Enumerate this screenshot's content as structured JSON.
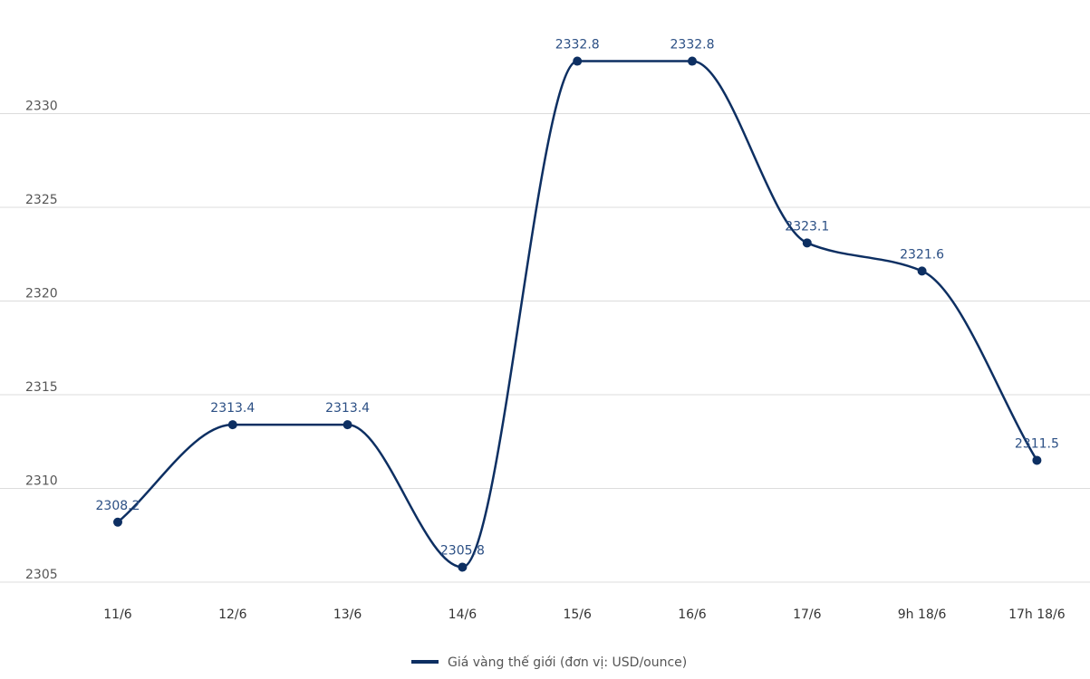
{
  "chart_data": {
    "type": "line",
    "categories": [
      "11/6",
      "12/6",
      "13/6",
      "14/6",
      "15/6",
      "16/6",
      "17/6",
      "9h 18/6",
      "17h 18/6"
    ],
    "series": [
      {
        "name": "Giá vàng thế giới (đơn vị: USD/ounce)",
        "values": [
          2308.2,
          2313.4,
          2313.4,
          2305.8,
          2332.8,
          2332.8,
          2323.1,
          2321.6,
          2311.5
        ],
        "labels": [
          "2308.2",
          "2313.4",
          "2313.4",
          "2305.8",
          "2332.8",
          "2332.8",
          "2323.1",
          "2321.6",
          "2311.5"
        ]
      }
    ],
    "yticks": [
      "2305",
      "2310",
      "2315",
      "2320",
      "2325",
      "2330"
    ],
    "ylim": [
      2305,
      2335
    ],
    "grid": true,
    "legend_position": "bottom",
    "colors": {
      "line": "#0d2f62",
      "label": "#2b4f84",
      "grid": "#dcdcdc"
    }
  }
}
